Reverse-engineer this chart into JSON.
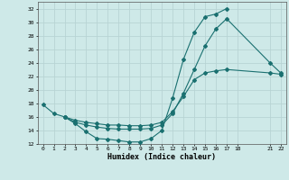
{
  "xlabel": "Humidex (Indice chaleur)",
  "ylabel": "",
  "xlim": [
    -0.5,
    22.5
  ],
  "ylim": [
    12,
    33
  ],
  "xticks": [
    0,
    1,
    2,
    3,
    4,
    5,
    6,
    7,
    8,
    9,
    10,
    11,
    12,
    13,
    14,
    15,
    16,
    17,
    18,
    21,
    22
  ],
  "yticks": [
    12,
    14,
    16,
    18,
    20,
    22,
    24,
    26,
    28,
    30,
    32
  ],
  "bg_color": "#cee9e8",
  "line_color": "#1a7070",
  "grid_color": "#b8d4d4",
  "line1_x": [
    0,
    1,
    2,
    3,
    4,
    5,
    6,
    7,
    8,
    9,
    10,
    11,
    12,
    13,
    14,
    15,
    16,
    17
  ],
  "line1_y": [
    17.8,
    16.5,
    16.0,
    15.0,
    13.8,
    12.8,
    12.7,
    12.5,
    12.3,
    12.3,
    12.8,
    14.0,
    18.8,
    24.5,
    28.5,
    30.8,
    31.2,
    32.0
  ],
  "line2_x": [
    2,
    3,
    4,
    5,
    6,
    7,
    8,
    9,
    10,
    11,
    12,
    13,
    14,
    15,
    16,
    17,
    21,
    22
  ],
  "line2_y": [
    16.0,
    15.2,
    14.8,
    14.5,
    14.3,
    14.2,
    14.2,
    14.2,
    14.3,
    14.8,
    16.5,
    19.5,
    23.0,
    26.5,
    29.0,
    30.5,
    24.0,
    22.5
  ],
  "line3_x": [
    2,
    3,
    4,
    5,
    6,
    7,
    8,
    9,
    10,
    11,
    12,
    13,
    14,
    15,
    16,
    17,
    21,
    22
  ],
  "line3_y": [
    16.0,
    15.5,
    15.2,
    15.0,
    14.8,
    14.8,
    14.7,
    14.7,
    14.8,
    15.2,
    16.8,
    19.0,
    21.5,
    22.5,
    22.8,
    23.0,
    22.5,
    22.3
  ]
}
